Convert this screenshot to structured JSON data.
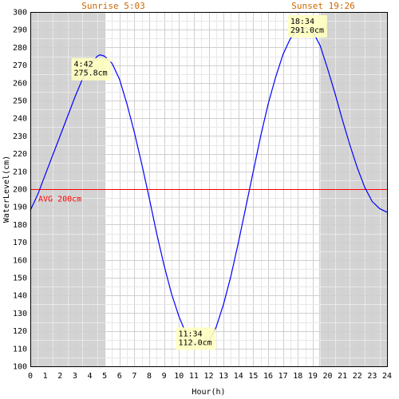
{
  "chart_data": {
    "type": "line",
    "title": "",
    "xlabel": "Hour(h)",
    "ylabel": "WaterLevel(cm)",
    "xlim": [
      0,
      24
    ],
    "ylim": [
      100,
      300
    ],
    "x_ticks": [
      0,
      1,
      2,
      3,
      4,
      5,
      6,
      7,
      8,
      9,
      10,
      11,
      12,
      13,
      14,
      15,
      16,
      17,
      18,
      19,
      20,
      21,
      22,
      23,
      24
    ],
    "y_ticks": [
      100,
      110,
      120,
      130,
      140,
      150,
      160,
      170,
      180,
      190,
      200,
      210,
      220,
      230,
      240,
      250,
      260,
      270,
      280,
      290,
      300
    ],
    "grid": true,
    "series": [
      {
        "color": "#0000ff",
        "x": [
          0,
          0.5,
          1,
          1.5,
          2,
          2.5,
          3,
          3.5,
          4,
          4.5,
          4.7,
          5,
          5.5,
          6,
          6.5,
          7,
          7.5,
          8,
          8.5,
          9,
          9.5,
          10,
          10.5,
          11,
          11.57,
          12,
          12.5,
          13,
          13.5,
          14,
          14.5,
          15,
          15.5,
          16,
          16.5,
          17,
          17.5,
          18,
          18.57,
          19,
          19.5,
          20,
          20.5,
          21,
          21.5,
          22,
          22.5,
          23,
          23.5,
          24
        ],
        "y": [
          188,
          197,
          208,
          219,
          230,
          241,
          252,
          262,
          270,
          275,
          275.8,
          275,
          271,
          262,
          248,
          232,
          214,
          195,
          175,
          157,
          141,
          128,
          118,
          113,
          112,
          114,
          122,
          135,
          151,
          170,
          190,
          210,
          230,
          248,
          263,
          276,
          285,
          290,
          291,
          289,
          281,
          268,
          254,
          239,
          225,
          212,
          201,
          193,
          189,
          187
        ]
      }
    ],
    "daylight": {
      "sunrise_hour": 5.05,
      "sunset_hour": 19.43,
      "night_color": "#d3d3d3"
    },
    "sunrise_label": "Sunrise 5:03",
    "sunset_label": "Sunset 19:26",
    "average": {
      "value": 200,
      "label": "AVG 200cm",
      "color": "#ff0000"
    },
    "annotations": [
      {
        "x": 4.7,
        "y": 275.8,
        "time": "4:42",
        "level": "275.8cm"
      },
      {
        "x": 11.57,
        "y": 112.0,
        "time": "11:34",
        "level": "112.0cm"
      },
      {
        "x": 18.57,
        "y": 291.0,
        "time": "18:34",
        "level": "291.0cm"
      }
    ]
  }
}
